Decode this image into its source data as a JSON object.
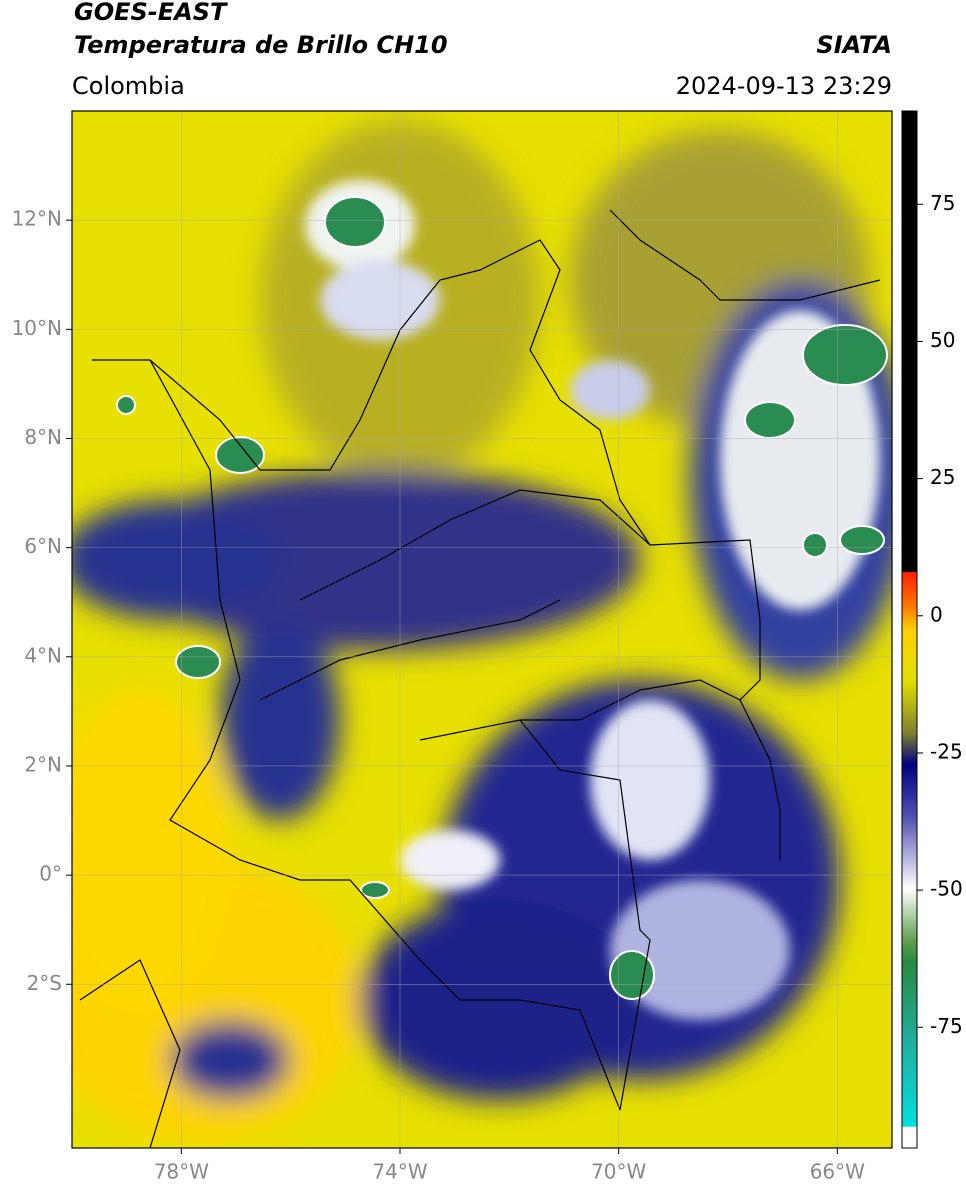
{
  "header": {
    "title": "GOES-EAST",
    "subtitle": "Temperatura de Brillo CH10",
    "region": "Colombia",
    "source": "SIATA",
    "datetime": "2024-09-13 23:29"
  },
  "map": {
    "xlim": [
      -80,
      -65
    ],
    "ylim": [
      -5,
      14
    ],
    "xticks": [
      {
        "value": -78,
        "label": "78°W"
      },
      {
        "value": -74,
        "label": "74°W"
      },
      {
        "value": -70,
        "label": "70°W"
      },
      {
        "value": -66,
        "label": "66°W"
      }
    ],
    "yticks": [
      {
        "value": 12,
        "label": "12°N"
      },
      {
        "value": 10,
        "label": "10°N"
      },
      {
        "value": 8,
        "label": "8°N"
      },
      {
        "value": 6,
        "label": "6°N"
      },
      {
        "value": 4,
        "label": "4°N"
      },
      {
        "value": 2,
        "label": "2°N"
      },
      {
        "value": 0,
        "label": "0°"
      },
      {
        "value": -2,
        "label": "2°S"
      }
    ],
    "grid": true
  },
  "colorbar": {
    "lim": [
      -97,
      92
    ],
    "ticks": [
      75,
      50,
      25,
      0,
      -25,
      -50,
      -75
    ]
  }
}
